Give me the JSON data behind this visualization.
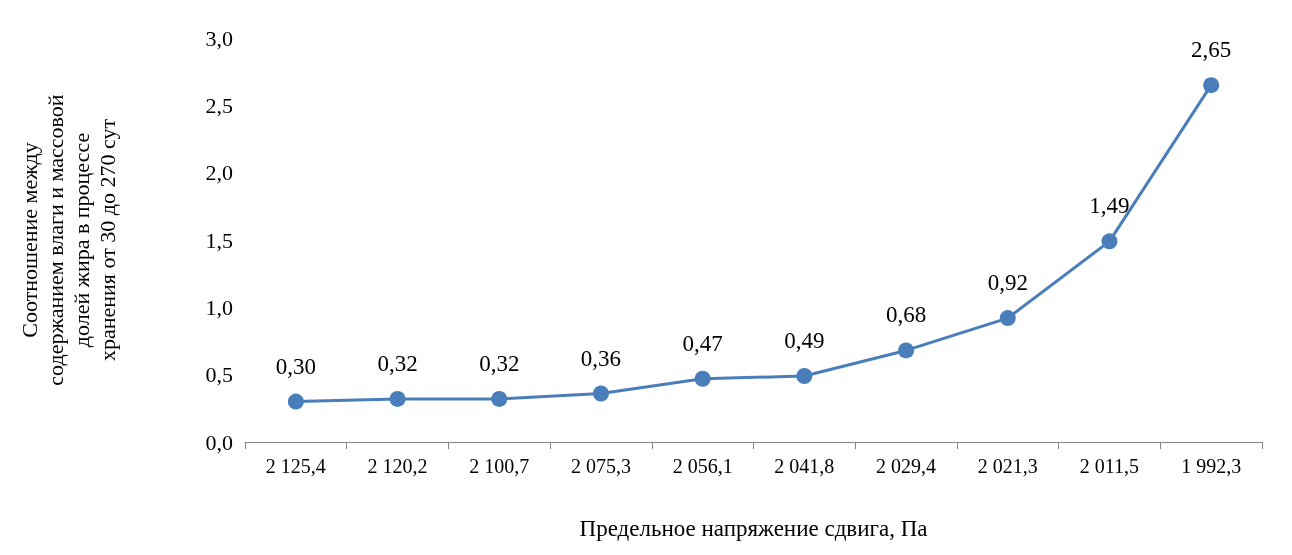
{
  "chart_data": {
    "type": "line",
    "xlabel": "Предельное напряжение сдвига, Па",
    "ylabel": "Соотношение между\nсодержанием влаги и массовой\nдолей жира в процессе\nхранения от 30 до 270 сут",
    "categories": [
      "2 125,4",
      "2 120,2",
      "2 100,7",
      "2 075,3",
      "2 056,1",
      "2 041,8",
      "2 029,4",
      "2 021,3",
      "2 011,5",
      "1 992,3"
    ],
    "values": [
      0.3,
      0.32,
      0.32,
      0.36,
      0.47,
      0.49,
      0.68,
      0.92,
      1.49,
      2.65
    ],
    "value_labels": [
      "0,30",
      "0,32",
      "0,32",
      "0,36",
      "0,47",
      "0,49",
      "0,68",
      "0,92",
      "1,49",
      "2,65"
    ],
    "color": "#4a7ebb",
    "marker": "circle",
    "line_style": "solid",
    "grid": false,
    "ylim": [
      0,
      3
    ],
    "yticks": [
      {
        "value": 0,
        "label": "0,0"
      },
      {
        "value": 0.5,
        "label": "0,5"
      },
      {
        "value": 1,
        "label": "1,0"
      },
      {
        "value": 1.5,
        "label": "1,5"
      },
      {
        "value": 2,
        "label": "2,0"
      },
      {
        "value": 2.5,
        "label": "2,5"
      },
      {
        "value": 3,
        "label": "3,0"
      }
    ]
  }
}
